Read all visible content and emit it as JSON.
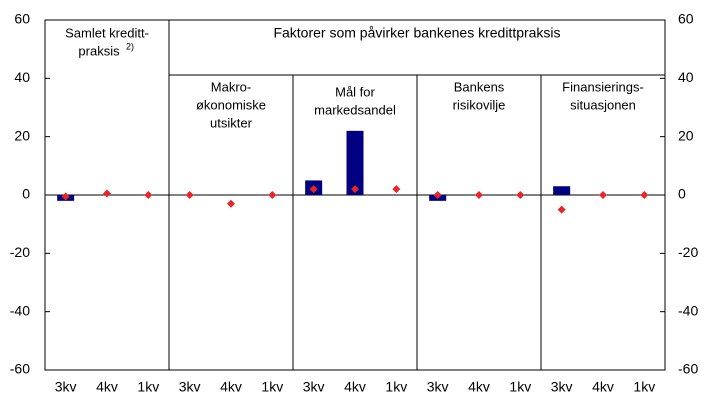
{
  "chart_data": {
    "type": "bar",
    "categories": [
      "3kv",
      "4kv",
      "1kv",
      "3kv",
      "4kv",
      "1kv",
      "3kv",
      "4kv",
      "1kv",
      "3kv",
      "4kv",
      "1kv",
      "3kv",
      "4kv",
      "1kv"
    ],
    "series": [
      {
        "type": "bar",
        "color": "#000080",
        "values": [
          -2,
          0,
          0,
          0,
          0,
          0,
          5,
          22,
          0,
          -2,
          0,
          0,
          3,
          0,
          0
        ]
      },
      {
        "type": "scatter",
        "color": "#e8262a",
        "values": [
          -0.5,
          0.5,
          0,
          0,
          -3,
          0,
          2,
          2,
          2,
          0,
          0,
          0,
          -5,
          0,
          0
        ]
      }
    ],
    "ylim": [
      -60,
      60
    ],
    "yticks": [
      -60,
      -40,
      -20,
      0,
      20,
      40,
      60
    ],
    "header": "Faktorer som påvirker bankenes kredittpraksis",
    "groups": [
      {
        "lines": [
          "Samlet kreditt-",
          "praksis"
        ],
        "note": "2)"
      },
      {
        "lines": [
          "Makro-",
          "økonomiske",
          "utsikter"
        ]
      },
      {
        "lines": [
          "Mål for",
          "markedsandel"
        ]
      },
      {
        "lines": [
          "Bankens",
          "risikovilje"
        ]
      },
      {
        "lines": [
          "Finansierings-",
          "situasjonen"
        ]
      }
    ]
  }
}
